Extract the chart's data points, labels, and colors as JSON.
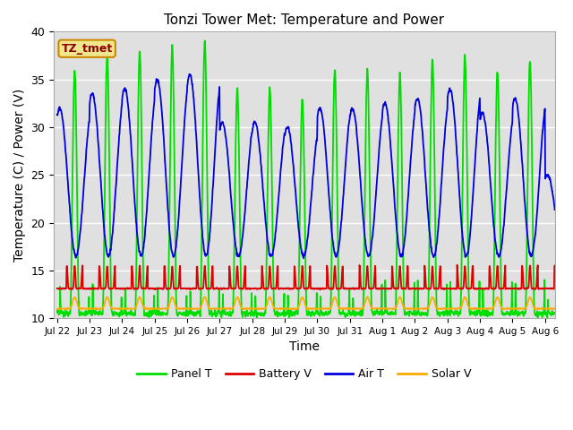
{
  "title": "Tonzi Tower Met: Temperature and Power",
  "xlabel": "Time",
  "ylabel": "Temperature (C) / Power (V)",
  "ylim": [
    10,
    40
  ],
  "annotation": "TZ_tmet",
  "legend": [
    "Panel T",
    "Battery V",
    "Air T",
    "Solar V"
  ],
  "colors": {
    "panel_t": "#00dd00",
    "battery_v": "#dd0000",
    "air_t": "#0000dd",
    "solar_v": "#ffaa00"
  },
  "x_tick_labels": [
    "Jul 22",
    "Jul 23",
    "Jul 24",
    "Jul 25",
    "Jul 26",
    "Jul 27",
    "Jul 28",
    "Jul 29",
    "Jul 30",
    "Jul 31",
    "Aug 1",
    "Aug 2",
    "Aug 3",
    "Aug 4",
    "Aug 5",
    "Aug 6"
  ],
  "x_tick_positions": [
    0,
    1,
    2,
    3,
    4,
    5,
    6,
    7,
    8,
    9,
    10,
    11,
    12,
    13,
    14,
    15
  ],
  "plot_bg": "#e0e0e0",
  "fig_bg": "#ffffff",
  "linewidth": 1.3,
  "panel_peaks": [
    36,
    37.5,
    38,
    38.5,
    39,
    34,
    34,
    33,
    36,
    36,
    35.5,
    37,
    37.5,
    36,
    37,
    21
  ],
  "air_peaks": [
    32,
    33.5,
    34,
    35,
    35.5,
    30.5,
    30.5,
    30,
    32,
    32,
    32.5,
    33,
    34,
    31.5,
    33,
    25
  ],
  "panel_trough": 10.5,
  "air_trough": 16.5,
  "battery_base": 13.1,
  "battery_peak": 15.5,
  "solar_base": 11.0,
  "solar_peak": 12.2
}
